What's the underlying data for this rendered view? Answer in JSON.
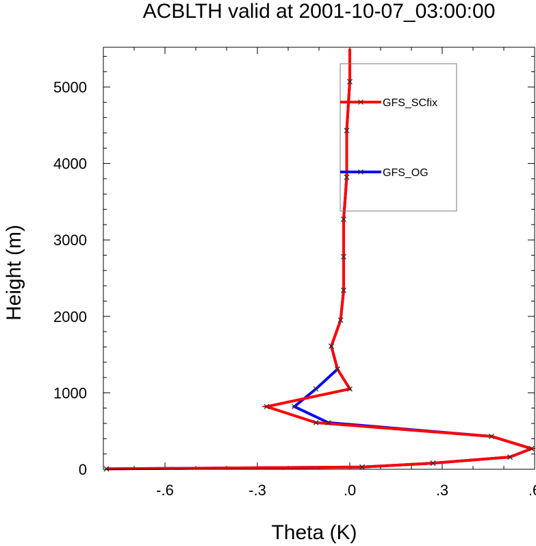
{
  "chart_data": {
    "type": "line",
    "title": "ACBLTH valid at 2001-10-07_03:00:00",
    "xlabel": "Theta (K)",
    "ylabel": "Height (m)",
    "xlim": [
      -0.8,
      0.6
    ],
    "ylim": [
      0,
      5500
    ],
    "x_ticks": [
      -0.6,
      -0.3,
      0.0,
      0.3,
      0.6
    ],
    "x_tick_labels": [
      "-.6",
      "-.3",
      ".0",
      ".3",
      ".6"
    ],
    "y_ticks": [
      0,
      1000,
      2000,
      3000,
      4000,
      5000
    ],
    "y_tick_labels": [
      "0",
      "1000",
      "2000",
      "3000",
      "4000",
      "5000"
    ],
    "grid": false,
    "legend_position": "top-right",
    "marker": "x",
    "series": [
      {
        "name": "GFS_SCfix",
        "color": "#ff0000",
        "points": [
          [
            -0.79,
            5
          ],
          [
            0.04,
            30
          ],
          [
            0.27,
            80
          ],
          [
            0.52,
            160
          ],
          [
            0.59,
            270
          ],
          [
            0.46,
            430
          ],
          [
            -0.11,
            610
          ],
          [
            -0.27,
            820
          ],
          [
            0.0,
            1050
          ],
          [
            -0.04,
            1310
          ],
          [
            -0.06,
            1610
          ],
          [
            -0.03,
            1950
          ],
          [
            -0.02,
            2340
          ],
          [
            -0.02,
            2780
          ],
          [
            -0.02,
            3270
          ],
          [
            -0.01,
            3820
          ],
          [
            -0.01,
            4430
          ],
          [
            0.0,
            5070
          ],
          [
            0.0,
            5500
          ]
        ]
      },
      {
        "name": "GFS_OG",
        "color": "#0000ff",
        "points": [
          [
            -0.79,
            5
          ],
          [
            0.04,
            30
          ],
          [
            0.27,
            80
          ],
          [
            0.52,
            160
          ],
          [
            0.59,
            270
          ],
          [
            0.46,
            430
          ],
          [
            -0.07,
            610
          ],
          [
            -0.18,
            820
          ],
          [
            -0.11,
            1050
          ],
          [
            -0.04,
            1310
          ],
          [
            -0.06,
            1610
          ],
          [
            -0.03,
            1950
          ],
          [
            -0.02,
            2340
          ],
          [
            -0.02,
            2780
          ],
          [
            -0.02,
            3270
          ],
          [
            -0.01,
            3820
          ],
          [
            -0.01,
            4430
          ],
          [
            0.0,
            5070
          ],
          [
            0.0,
            5500
          ]
        ]
      }
    ]
  }
}
